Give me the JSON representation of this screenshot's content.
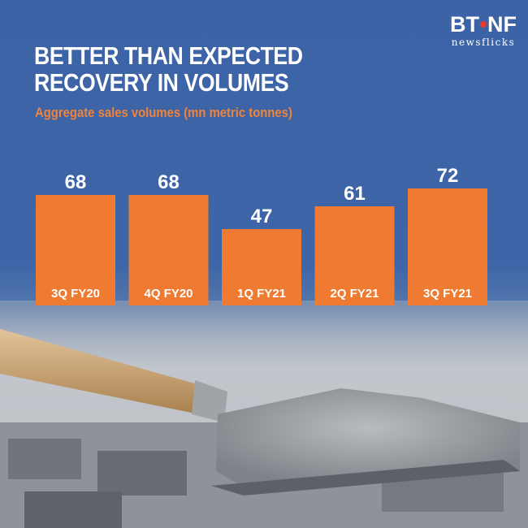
{
  "brand": {
    "mark_left": "BT",
    "mark_right": "NF",
    "sub": "newsflicks"
  },
  "header": {
    "title": "BETTER THAN EXPECTED RECOVERY IN VOLUMES",
    "subtitle": "Aggregate sales volumes (mn metric tonnes)"
  },
  "colors": {
    "background": "#3d65a8",
    "bar": "#ee7b31",
    "subtitle": "#f0843a",
    "text": "#ffffff"
  },
  "chart_data": {
    "type": "bar",
    "title": "BETTER THAN EXPECTED RECOVERY IN VOLUMES",
    "subtitle": "Aggregate sales volumes (mn metric tonnes)",
    "categories": [
      "3Q FY20",
      "4Q FY20",
      "1Q FY21",
      "2Q FY21",
      "3Q FY21"
    ],
    "values": [
      68,
      68,
      47,
      61,
      72
    ],
    "xlabel": "",
    "ylabel": "",
    "data_labels": "above-bars",
    "category_labels": "inside-bar-bottom",
    "grid": false,
    "legend": "none"
  }
}
